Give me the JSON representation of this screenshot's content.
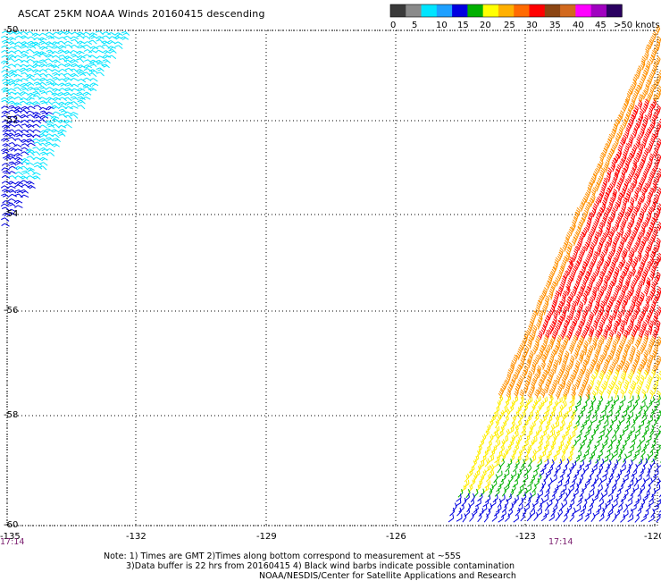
{
  "title": "ASCAT 25KM NOAA Winds 20160415 descending",
  "colorbar": {
    "ticks": [
      "0",
      "5",
      "10",
      "15",
      "20",
      "25",
      "30",
      "35",
      "40",
      "45",
      ">50 knots"
    ],
    "colors": [
      "#3a3a3a",
      "#8a8a8a",
      "#00e5ff",
      "#1ea0ff",
      "#0000e0",
      "#00b000",
      "#ffff00",
      "#ffb000",
      "#ff6a00",
      "#ff0000",
      "#8b4513",
      "#d2691e",
      "#ff00ff",
      "#a000c0",
      "#2a0060"
    ]
  },
  "map": {
    "lat_labels": [
      "-50",
      "-52",
      "-54",
      "-56",
      "-58",
      "-60"
    ],
    "lon_labels": [
      "-135",
      "-132",
      "-129",
      "-126",
      "-123",
      "-120"
    ],
    "time_labels": [
      "17:14",
      "17:14"
    ]
  },
  "notes": {
    "line1": "Note: 1) Times are GMT 2)Times along bottom correspond to measurement at ~55S",
    "line2": "3)Data buffer is 22 hrs from 20160415 4) Black wind barbs indicate possible contamination",
    "line3": "NOAA/NESDIS/Center for Satellite Applications and Research"
  },
  "legend_colors": {
    "cyan": "#00e5ff",
    "blue": "#0000e0",
    "green": "#00b000",
    "yellow": "#ffee00",
    "orange": "#ff9000",
    "red": "#ff0000"
  }
}
